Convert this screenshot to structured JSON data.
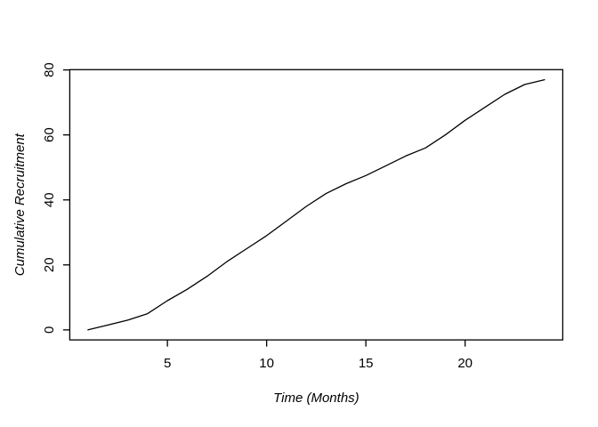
{
  "chart_data": {
    "type": "line",
    "title": "",
    "xlabel": "Time (Months)",
    "ylabel": "Cumulative Recruitment",
    "x": [
      1,
      2,
      3,
      4,
      5,
      6,
      7,
      8,
      9,
      10,
      11,
      12,
      13,
      14,
      15,
      16,
      17,
      18,
      19,
      20,
      21,
      22,
      23,
      24
    ],
    "y": [
      0,
      1.5,
      3,
      5,
      9,
      12.5,
      16.5,
      21,
      25,
      29,
      33.5,
      38,
      42,
      45,
      47.5,
      50.5,
      53.5,
      56,
      60,
      64.5,
      68.5,
      72.5,
      75.5,
      77
    ],
    "xticks": [
      5,
      10,
      15,
      20
    ],
    "yticks": [
      0,
      20,
      40,
      60,
      80
    ],
    "xlim": [
      0.08,
      24.92
    ],
    "ylim": [
      -3.08,
      80.08
    ],
    "grid": false,
    "legend_position": "none",
    "line_color": "#000000",
    "axis_color": "#000000",
    "background_color": "#ffffff"
  }
}
